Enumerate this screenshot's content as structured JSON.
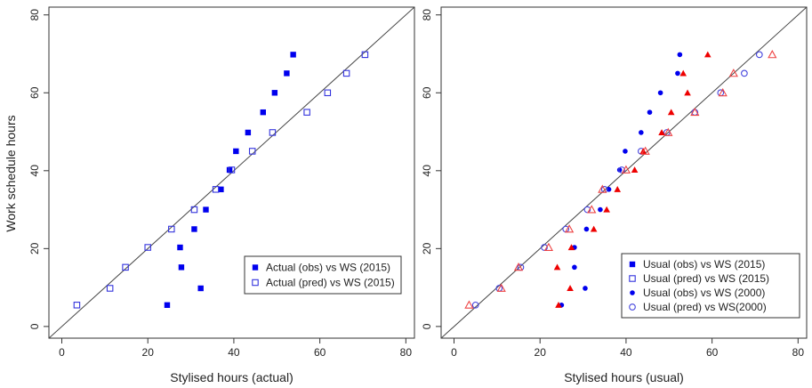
{
  "figure": {
    "y_label": "Work schedule hours"
  },
  "chart_data": [
    {
      "type": "scatter",
      "panel": "left",
      "xlabel": "Stylised hours (actual)",
      "ylabel": "Work schedule hours",
      "xlim": [
        -3,
        82
      ],
      "ylim": [
        -3,
        82
      ],
      "xticks": [
        0,
        20,
        40,
        60,
        80
      ],
      "yticks": [
        0,
        20,
        40,
        60,
        80
      ],
      "grid": false,
      "reference_line": "y = x",
      "legend_position": "bottom-right",
      "series": [
        {
          "name": "Actual (obs) vs WS (2015)",
          "marker": "filled-square",
          "color": "#0000ee",
          "points": [
            [
              24.5,
              5.5
            ],
            [
              32.3,
              9.8
            ],
            [
              27.8,
              15.2
            ],
            [
              27.5,
              20.3
            ],
            [
              30.8,
              25
            ],
            [
              33.5,
              30
            ],
            [
              37,
              35.2
            ],
            [
              39,
              40.2
            ],
            [
              40.5,
              45
            ],
            [
              43.3,
              49.8
            ],
            [
              46.8,
              55
            ],
            [
              49.5,
              60
            ],
            [
              52.3,
              65
            ],
            [
              53.8,
              69.8
            ]
          ]
        },
        {
          "name": "Actual (pred) vs WS (2015)",
          "marker": "open-square",
          "color": "#3333dd",
          "points": [
            [
              3.5,
              5.5
            ],
            [
              11.2,
              9.8
            ],
            [
              14.8,
              15.2
            ],
            [
              20,
              20.3
            ],
            [
              25.5,
              25
            ],
            [
              30.8,
              30
            ],
            [
              35.8,
              35.2
            ],
            [
              39.5,
              40.2
            ],
            [
              44.3,
              45
            ],
            [
              49,
              49.8
            ],
            [
              57,
              55
            ],
            [
              61.8,
              60
            ],
            [
              66.2,
              65
            ],
            [
              70.5,
              69.8
            ]
          ]
        }
      ]
    },
    {
      "type": "scatter",
      "panel": "right",
      "xlabel": "Stylised hours (usual)",
      "ylabel": "",
      "xlim": [
        -3,
        82
      ],
      "ylim": [
        -3,
        82
      ],
      "xticks": [
        0,
        20,
        40,
        60,
        80
      ],
      "yticks": [
        0,
        20,
        40,
        60,
        80
      ],
      "grid": false,
      "reference_line": "y = x",
      "legend_position": "bottom-right",
      "series": [
        {
          "name": "Usual (obs) vs WS (2015)",
          "marker": "filled-square",
          "color": "#0000ee",
          "points": []
        },
        {
          "name": "Usual (pred) vs WS (2015)",
          "marker": "open-square",
          "color": "#3333dd",
          "points": []
        },
        {
          "name": "Usual (obs) vs WS (2000)",
          "marker": "filled-circle",
          "color": "#0000ee",
          "points": [
            [
              25,
              5.5
            ],
            [
              30.5,
              9.8
            ],
            [
              28,
              15.2
            ],
            [
              28,
              20.3
            ],
            [
              30.8,
              25
            ],
            [
              34,
              30
            ],
            [
              36,
              35.2
            ],
            [
              38.5,
              40.2
            ],
            [
              39.8,
              45
            ],
            [
              43.5,
              49.8
            ],
            [
              45.5,
              55
            ],
            [
              48,
              60
            ],
            [
              52,
              65
            ],
            [
              52.5,
              69.8
            ]
          ]
        },
        {
          "name": "Usual (pred) vs WS(2000)",
          "marker": "open-circle",
          "color": "#4444dd",
          "points": [
            [
              5,
              5.5
            ],
            [
              10.5,
              9.8
            ],
            [
              15.5,
              15.2
            ],
            [
              21,
              20.3
            ],
            [
              26,
              25
            ],
            [
              31,
              30
            ],
            [
              35,
              35.2
            ],
            [
              39,
              40.2
            ],
            [
              43.5,
              45
            ],
            [
              49.5,
              49.8
            ],
            [
              56,
              55
            ],
            [
              62,
              60
            ],
            [
              67.5,
              65
            ],
            [
              71,
              69.8
            ]
          ]
        },
        {
          "name": "",
          "marker": "filled-triangle",
          "color": "#ee0000",
          "points": [
            [
              24.3,
              5.5
            ],
            [
              27,
              9.8
            ],
            [
              24,
              15.2
            ],
            [
              27.3,
              20.3
            ],
            [
              32.5,
              25
            ],
            [
              35.5,
              30
            ],
            [
              38,
              35.2
            ],
            [
              42,
              40.2
            ],
            [
              44,
              45
            ],
            [
              48.3,
              49.8
            ],
            [
              50.5,
              55
            ],
            [
              54.3,
              60
            ],
            [
              53.3,
              65
            ],
            [
              59,
              69.8
            ]
          ]
        },
        {
          "name": "",
          "marker": "open-triangle",
          "color": "#ee4444",
          "points": [
            [
              3.5,
              5.5
            ],
            [
              11,
              9.8
            ],
            [
              15,
              15.2
            ],
            [
              22,
              20.3
            ],
            [
              26.8,
              25
            ],
            [
              32,
              30
            ],
            [
              34.5,
              35.2
            ],
            [
              40,
              40.2
            ],
            [
              44.5,
              45
            ],
            [
              49.8,
              49.8
            ],
            [
              56,
              55
            ],
            [
              62.5,
              60
            ],
            [
              65,
              65
            ],
            [
              74,
              69.8
            ]
          ]
        }
      ]
    }
  ]
}
